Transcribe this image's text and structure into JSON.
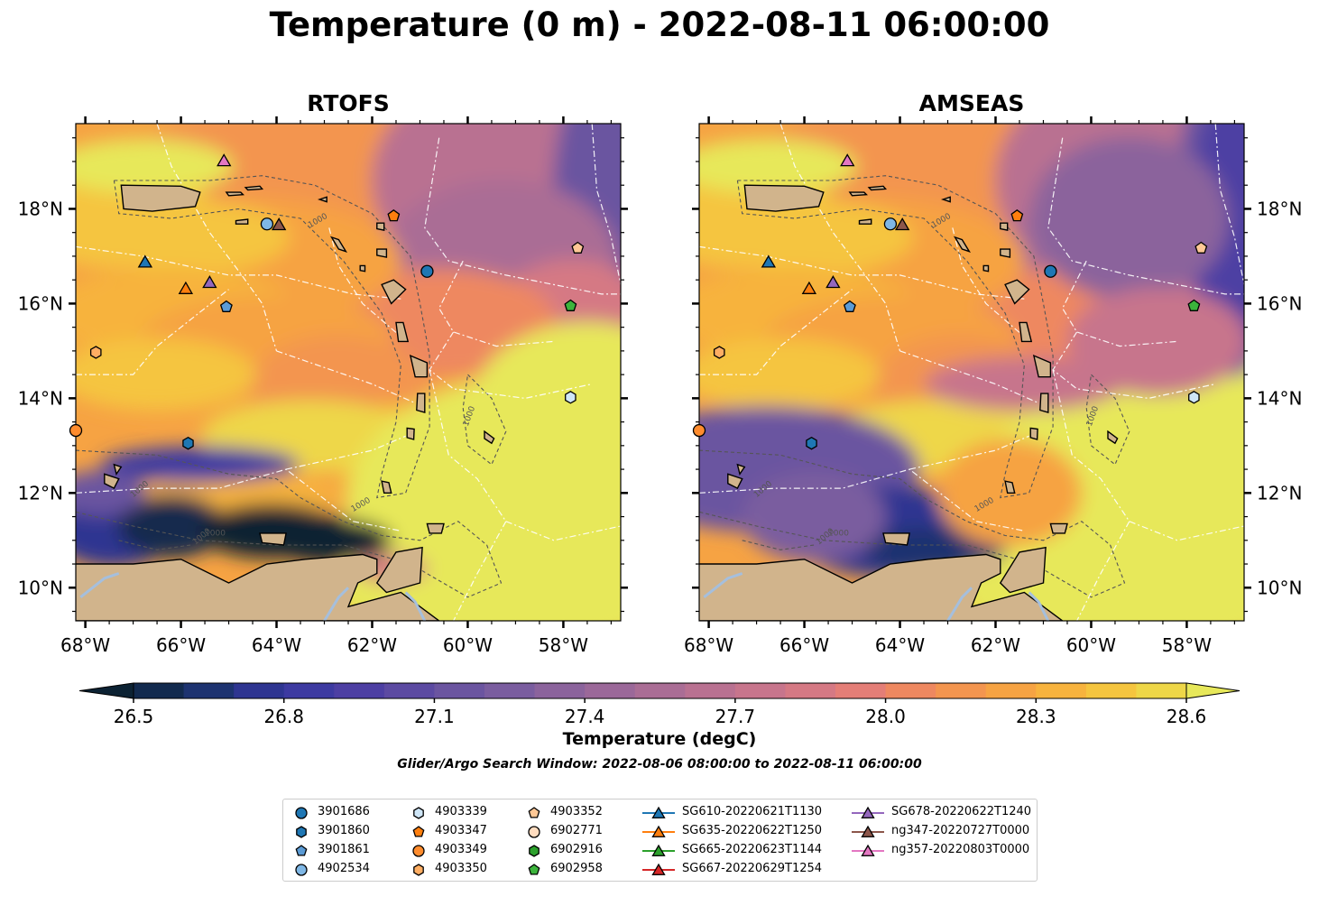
{
  "title": "Temperature (0 m) - 2022-08-11 06:00:00",
  "panels": [
    {
      "id": "rtofs",
      "title": "RTOFS"
    },
    {
      "id": "amseas",
      "title": "AMSEAS"
    }
  ],
  "axes": {
    "lon_ticks": [
      "68°W",
      "66°W",
      "64°W",
      "62°W",
      "60°W",
      "58°W"
    ],
    "lat_ticks": [
      "18°N",
      "16°N",
      "14°N",
      "12°N",
      "10°N"
    ],
    "lon_range": [
      -68.2,
      -56.8
    ],
    "lat_range": [
      9.3,
      19.8
    ]
  },
  "colorbar": {
    "label": "Temperature (degC)",
    "ticks": [
      "26.5",
      "26.8",
      "27.1",
      "27.4",
      "27.7",
      "28.0",
      "28.3",
      "28.6"
    ],
    "min": 26.4,
    "max": 28.7,
    "colors": [
      "#0c2233",
      "#122a4e",
      "#1d3370",
      "#2e3591",
      "#3d3aa1",
      "#4d3fa3",
      "#5c4aa2",
      "#6b55a0",
      "#7a5d9f",
      "#8b639c",
      "#9b6899",
      "#aa6d95",
      "#b97191",
      "#c7758c",
      "#d57984",
      "#e47e77",
      "#ee8860",
      "#f3954f",
      "#f6a343",
      "#f7b33e",
      "#f5c53f",
      "#eed748",
      "#e7e85a"
    ]
  },
  "search_window": "Glider/Argo Search Window: 2022-08-06 08:00:00 to 2022-08-11 06:00:00",
  "contour_label": "1000",
  "colors": {
    "land": "#d1b48c",
    "rivers": "#a5bfdd",
    "eez_lines": "#ffffff",
    "contours": "#555555"
  },
  "markers": [
    {
      "label": "3901686",
      "shape": "circle",
      "color": "#1f77b4",
      "lon": -60.85,
      "lat": 16.68
    },
    {
      "label": "3901860",
      "shape": "hexagon",
      "color": "#1f77b4",
      "lon": -65.85,
      "lat": 13.05
    },
    {
      "label": "3901861",
      "shape": "pentagon",
      "color": "#5b9bd5",
      "lon": -65.05,
      "lat": 15.93
    },
    {
      "label": "4902534",
      "shape": "circle",
      "color": "#7fb7e5",
      "lon": -64.2,
      "lat": 17.68
    },
    {
      "label": "4903339",
      "shape": "hexagon",
      "color": "#cfe6f7",
      "lon": -57.85,
      "lat": 14.02
    },
    {
      "label": "4903347",
      "shape": "pentagon",
      "color": "#ff7f0e",
      "lon": -61.55,
      "lat": 17.85
    },
    {
      "label": "4903349",
      "shape": "circle",
      "color": "#ff8c2e",
      "lon": -68.2,
      "lat": 13.32
    },
    {
      "label": "4903350",
      "shape": "hexagon",
      "color": "#ffae63",
      "lon": -67.78,
      "lat": 14.97
    },
    {
      "label": "4903352",
      "shape": "pentagon",
      "color": "#ffc896",
      "lon": -57.7,
      "lat": 17.17
    },
    {
      "label": "6902771",
      "shape": "circle",
      "color": "#ffdcbf",
      "lon": null,
      "lat": null
    },
    {
      "label": "6902916",
      "shape": "hexagon",
      "color": "#2ca02c",
      "lon": null,
      "lat": null
    },
    {
      "label": "6902958",
      "shape": "pentagon",
      "color": "#3cb43c",
      "lon": -57.85,
      "lat": 15.95
    },
    {
      "label": "SG610-20220621T1130",
      "shape": "triangle",
      "color": "#1f77b4",
      "lon": -66.75,
      "lat": 16.88
    },
    {
      "label": "SG635-20220622T1250",
      "shape": "triangle",
      "color": "#ff7f0e",
      "lon": -65.9,
      "lat": 16.32
    },
    {
      "label": "SG665-20220623T1144",
      "shape": "triangle",
      "color": "#2ca02c",
      "lon": null,
      "lat": null
    },
    {
      "label": "SG667-20220629T1254",
      "shape": "triangle",
      "color": "#d62728",
      "lon": null,
      "lat": null
    },
    {
      "label": "SG678-20220622T1240",
      "shape": "triangle",
      "color": "#9467bd",
      "lon": -65.4,
      "lat": 16.45
    },
    {
      "label": "ng347-20220727T0000",
      "shape": "triangle",
      "color": "#8c564b",
      "lon": -63.95,
      "lat": 17.67
    },
    {
      "label": "ng357-20220803T0000",
      "shape": "triangle",
      "color": "#e377c2",
      "lon": -65.1,
      "lat": 19.02
    }
  ]
}
